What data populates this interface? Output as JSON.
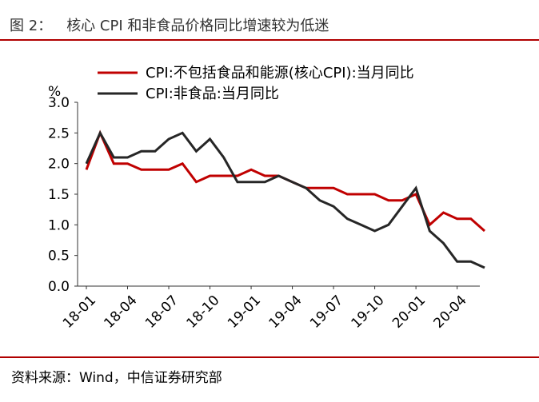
{
  "figure": {
    "label": "图 2：",
    "title": "核心 CPI 和非食品价格同比增速较为低迷",
    "source": "资料来源：Wind，中信证券研究部"
  },
  "colors": {
    "red": "#c00000",
    "black": "#262626",
    "accent_rule": "#b00000"
  },
  "chart_data": {
    "type": "line",
    "title": "核心 CPI 和非食品价格同比增速较为低迷",
    "ylabel": "%",
    "xlabel": "",
    "ylim": [
      0,
      3.0
    ],
    "yticks": [
      "0.0",
      "0.5",
      "1.0",
      "1.5",
      "2.0",
      "2.5",
      "3.0"
    ],
    "ytick_values": [
      0,
      0.5,
      1.0,
      1.5,
      2.0,
      2.5,
      3.0
    ],
    "x_tick_labels": [
      "18-01",
      "18-04",
      "18-07",
      "18-10",
      "19-01",
      "19-04",
      "19-07",
      "19-10",
      "20-01",
      "20-04"
    ],
    "x": [
      "18-01",
      "18-02",
      "18-03",
      "18-04",
      "18-05",
      "18-06",
      "18-07",
      "18-08",
      "18-09",
      "18-10",
      "18-11",
      "18-12",
      "19-01",
      "19-02",
      "19-03",
      "19-04",
      "19-05",
      "19-06",
      "19-07",
      "19-08",
      "19-09",
      "19-10",
      "19-11",
      "19-12",
      "20-01",
      "20-02",
      "20-03",
      "20-04",
      "20-05",
      "20-06"
    ],
    "legend_position": "top-left",
    "grid": false,
    "series": [
      {
        "name": "CPI:不包括食品和能源(核心CPI):当月同比",
        "color": "#c00000",
        "values": [
          1.9,
          2.5,
          2.0,
          2.0,
          1.9,
          1.9,
          1.9,
          2.0,
          1.7,
          1.8,
          1.8,
          1.8,
          1.9,
          1.8,
          1.8,
          1.7,
          1.6,
          1.6,
          1.6,
          1.5,
          1.5,
          1.5,
          1.4,
          1.4,
          1.5,
          1.0,
          1.2,
          1.1,
          1.1,
          0.9
        ]
      },
      {
        "name": "CPI:非食品:当月同比",
        "color": "#262626",
        "values": [
          2.0,
          2.5,
          2.1,
          2.1,
          2.2,
          2.2,
          2.4,
          2.5,
          2.2,
          2.4,
          2.1,
          1.7,
          1.7,
          1.7,
          1.8,
          1.7,
          1.6,
          1.4,
          1.3,
          1.1,
          1.0,
          0.9,
          1.0,
          1.3,
          1.6,
          0.9,
          0.7,
          0.4,
          0.4,
          0.3
        ]
      }
    ]
  }
}
